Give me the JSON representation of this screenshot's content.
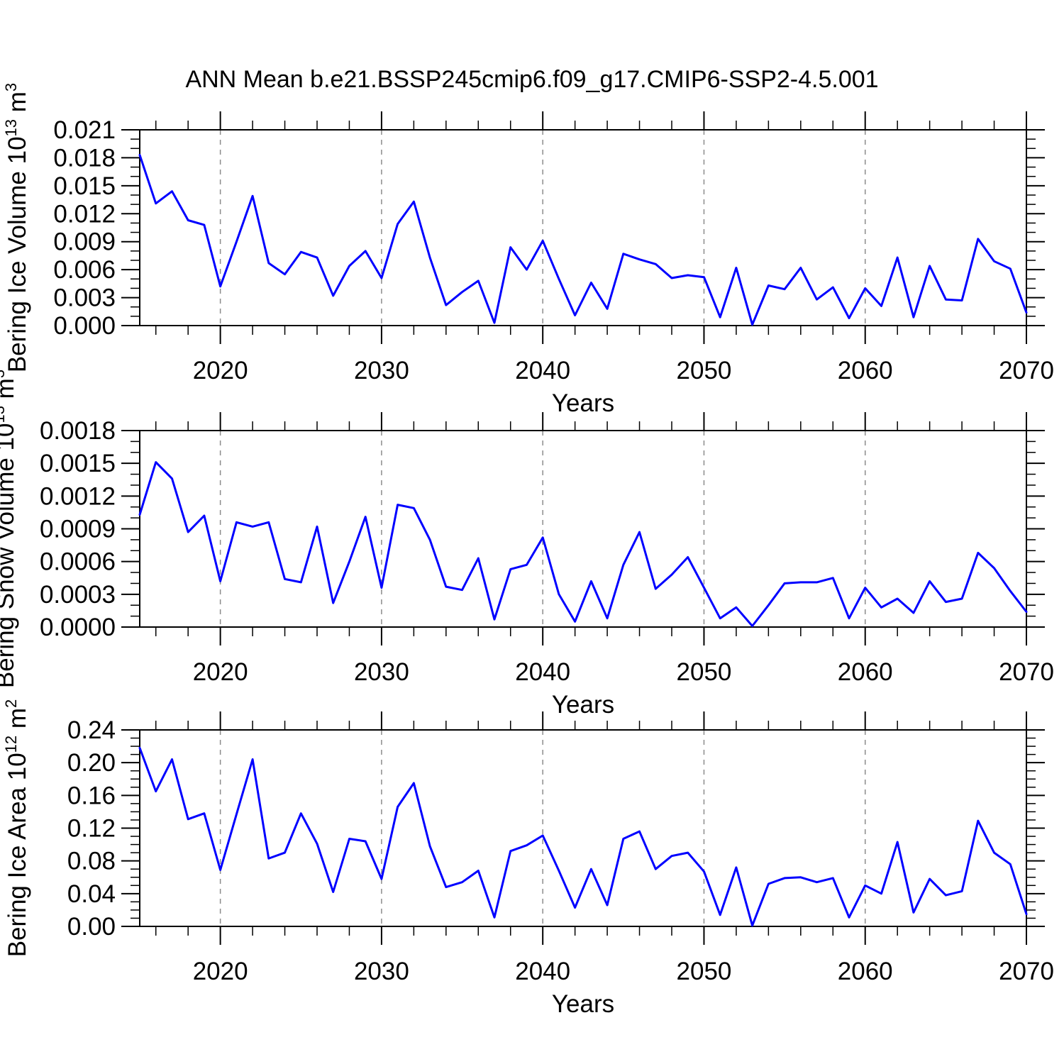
{
  "page": {
    "title": "ANN Mean b.e21.BSSP245cmip6.f09_g17.CMIP6-SSP2-4.5.001",
    "background": "#ffffff"
  },
  "style": {
    "line_color": "#0000ff",
    "axis_color": "#000000",
    "grid_color": "#8c8c8c",
    "text_color": "#000000"
  },
  "chart_data": [
    {
      "type": "line",
      "panel_name": "ice-volume-panel",
      "title": "",
      "ylabel": "Bering Ice Volume 10^13 m^3",
      "ylabel_rich": [
        [
          "Bering Ice Volume 10",
          false
        ],
        [
          "13",
          true
        ],
        [
          " m",
          false
        ],
        [
          "3",
          true
        ]
      ],
      "xlabel": "Years",
      "x": {
        "start": 2015,
        "end": 2070,
        "step": 1
      },
      "values": [
        0.0183,
        0.0131,
        0.0144,
        0.0113,
        0.0108,
        0.0042,
        0.009,
        0.0139,
        0.0067,
        0.0055,
        0.0079,
        0.0073,
        0.0032,
        0.0064,
        0.008,
        0.0051,
        0.0109,
        0.0133,
        0.0073,
        0.0022,
        0.0036,
        0.0048,
        0.0003,
        0.0084,
        0.006,
        0.0091,
        0.005,
        0.0011,
        0.0046,
        0.0018,
        0.0077,
        0.0071,
        0.0066,
        0.0051,
        0.0054,
        0.0052,
        0.0009,
        0.0062,
        0.0001,
        0.0043,
        0.0039,
        0.0062,
        0.0028,
        0.0041,
        0.0008,
        0.004,
        0.0021,
        0.0073,
        0.0009,
        0.0064,
        0.0028,
        0.0027,
        0.0093,
        0.0069,
        0.0061,
        0.0014
      ],
      "ylim": [
        0,
        0.021
      ],
      "ytick_major": 0.003,
      "ytick_minor": 0.001,
      "ytick_decimals": 3,
      "xlim": [
        2015,
        2070
      ],
      "xtick_major": 10,
      "xtick_minor": 2,
      "xtick_labels": [
        2020,
        2030,
        2040,
        2050,
        2060,
        2070
      ],
      "gridlines_x": [
        2020,
        2030,
        2040,
        2050,
        2060
      ],
      "legend": "none",
      "grid": "vertical dashed at decades"
    },
    {
      "type": "line",
      "panel_name": "snow-volume-panel",
      "title": "",
      "ylabel": "Bering Snow Volume 10^13 m^3",
      "ylabel_rich": [
        [
          "Bering Snow Volume 10",
          false
        ],
        [
          "13",
          true
        ],
        [
          " m",
          false
        ],
        [
          "3",
          true
        ]
      ],
      "xlabel": "Years",
      "x": {
        "start": 2015,
        "end": 2070,
        "step": 1
      },
      "values": [
        0.00103,
        0.00151,
        0.00136,
        0.00087,
        0.00102,
        0.00042,
        0.00096,
        0.00092,
        0.00096,
        0.00044,
        0.00041,
        0.00092,
        0.00022,
        0.0006,
        0.00101,
        0.00036,
        0.00112,
        0.00109,
        0.0008,
        0.00037,
        0.00034,
        0.00063,
        7e-05,
        0.00053,
        0.00057,
        0.00082,
        0.0003,
        5e-05,
        0.00042,
        8e-05,
        0.00057,
        0.00087,
        0.00035,
        0.00048,
        0.00064,
        0.00036,
        8e-05,
        0.00018,
        1e-05,
        0.0002,
        0.0004,
        0.00041,
        0.00041,
        0.00045,
        8e-05,
        0.00036,
        0.00018,
        0.00026,
        0.00013,
        0.00042,
        0.00023,
        0.00026,
        0.00068,
        0.00054,
        0.00033,
        0.00014
      ],
      "ylim": [
        0,
        0.0018
      ],
      "ytick_major": 0.0003,
      "ytick_minor": 0.0001,
      "ytick_decimals": 4,
      "xlim": [
        2015,
        2070
      ],
      "xtick_major": 10,
      "xtick_minor": 2,
      "xtick_labels": [
        2020,
        2030,
        2040,
        2050,
        2060,
        2070
      ],
      "gridlines_x": [
        2020,
        2030,
        2040,
        2050,
        2060
      ],
      "legend": "none",
      "grid": "vertical dashed at decades"
    },
    {
      "type": "line",
      "panel_name": "ice-area-panel",
      "title": "",
      "ylabel": "Bering Ice Area 10^12 m^2",
      "ylabel_rich": [
        [
          "Bering Ice Area 10",
          false
        ],
        [
          "12",
          true
        ],
        [
          " m",
          false
        ],
        [
          "2",
          true
        ]
      ],
      "xlabel": "Years",
      "x": {
        "start": 2015,
        "end": 2070,
        "step": 1
      },
      "values": [
        0.218,
        0.165,
        0.204,
        0.131,
        0.138,
        0.069,
        0.137,
        0.204,
        0.083,
        0.09,
        0.138,
        0.101,
        0.042,
        0.107,
        0.104,
        0.058,
        0.146,
        0.175,
        0.098,
        0.048,
        0.054,
        0.068,
        0.011,
        0.092,
        0.099,
        0.111,
        0.068,
        0.023,
        0.07,
        0.026,
        0.107,
        0.116,
        0.07,
        0.086,
        0.09,
        0.067,
        0.014,
        0.072,
        0.001,
        0.052,
        0.059,
        0.06,
        0.054,
        0.059,
        0.011,
        0.05,
        0.04,
        0.103,
        0.017,
        0.058,
        0.038,
        0.043,
        0.129,
        0.09,
        0.076,
        0.015
      ],
      "ylim": [
        0,
        0.24
      ],
      "ytick_major": 0.04,
      "ytick_minor": 0.01,
      "ytick_decimals": 2,
      "xlim": [
        2015,
        2070
      ],
      "xtick_major": 10,
      "xtick_minor": 2,
      "xtick_labels": [
        2020,
        2030,
        2040,
        2050,
        2060,
        2070
      ],
      "gridlines_x": [
        2020,
        2030,
        2040,
        2050,
        2060
      ],
      "legend": "none",
      "grid": "vertical dashed at decades"
    }
  ]
}
